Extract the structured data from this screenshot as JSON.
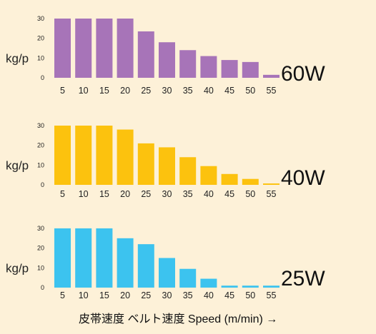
{
  "x_axis_title": "皮帯速度 ベルト速度 Speed (m/min) →",
  "chart_data": [
    {
      "type": "bar",
      "wattage_label": "60W",
      "ylabel": "kg/p",
      "color": "#a774b8",
      "categories": [
        "5",
        "10",
        "15",
        "20",
        "25",
        "30",
        "35",
        "40",
        "45",
        "50",
        "55"
      ],
      "values": [
        30,
        30,
        30,
        30,
        23.5,
        18,
        14,
        11,
        9,
        8,
        1.5
      ],
      "yticks": [
        0,
        10,
        20,
        30
      ],
      "ylim": [
        0,
        30
      ]
    },
    {
      "type": "bar",
      "wattage_label": "40W",
      "ylabel": "kg/p",
      "color": "#fcc20e",
      "categories": [
        "5",
        "10",
        "15",
        "20",
        "25",
        "30",
        "35",
        "40",
        "45",
        "50",
        "55"
      ],
      "values": [
        30,
        30,
        30,
        28,
        21,
        19,
        14,
        9.5,
        5.5,
        3,
        0.7
      ],
      "yticks": [
        0,
        10,
        20,
        30
      ],
      "ylim": [
        0,
        30
      ]
    },
    {
      "type": "bar",
      "wattage_label": "25W",
      "ylabel": "kg/p",
      "color": "#3cc3ef",
      "categories": [
        "5",
        "10",
        "15",
        "20",
        "25",
        "30",
        "35",
        "40",
        "45",
        "50",
        "55"
      ],
      "values": [
        30,
        30,
        30,
        25,
        22,
        15,
        9.5,
        4.5,
        1,
        1,
        1
      ],
      "yticks": [
        0,
        10,
        20,
        30
      ],
      "ylim": [
        0,
        30
      ]
    }
  ]
}
